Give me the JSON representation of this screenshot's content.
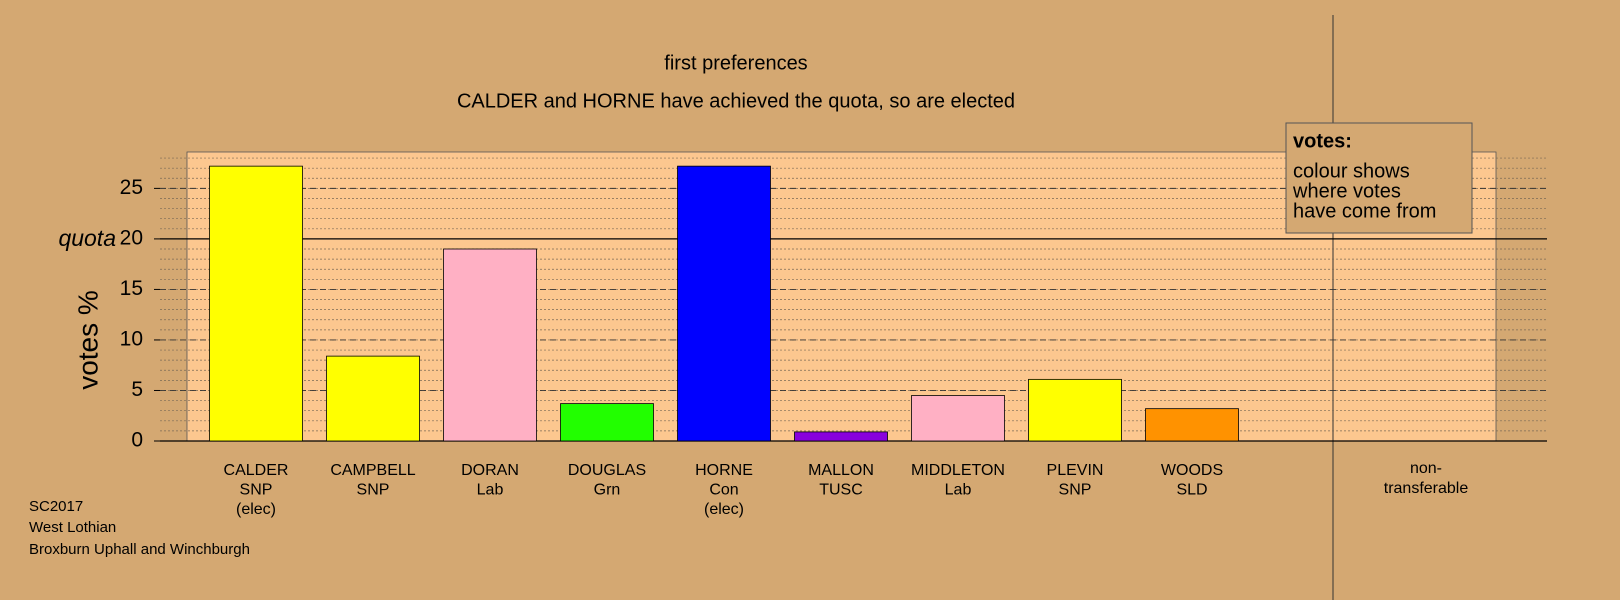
{
  "chart_data": {
    "type": "bar",
    "title": "first preferences",
    "subtitle": "CALDER and HORNE have achieved the quota, so are elected",
    "ylabel": "votes %",
    "categories": [
      [
        "CALDER",
        "SNP",
        "(elec)"
      ],
      [
        "CAMPBELL",
        "SNP"
      ],
      [
        "DORAN",
        "Lab"
      ],
      [
        "DOUGLAS",
        "Grn"
      ],
      [
        "HORNE",
        "Con",
        "(elec)"
      ],
      [
        "MALLON",
        "TUSC"
      ],
      [
        "MIDDLETON",
        "Lab"
      ],
      [
        "PLEVIN",
        "SNP"
      ],
      [
        "WOODS",
        "SLD"
      ]
    ],
    "values": [
      27.2,
      8.4,
      19.0,
      3.7,
      27.2,
      0.9,
      4.5,
      6.1,
      3.2
    ],
    "colors": [
      "#ffff00",
      "#ffff00",
      "#ffb0c4",
      "#22ff00",
      "#0000ff",
      "#8800dd",
      "#ffb0c4",
      "#ffff00",
      "#ff9200"
    ],
    "extra_column": [
      "non-",
      "transferable"
    ],
    "ylim": [
      0,
      28.6
    ],
    "yticks": [
      0,
      5,
      10,
      15,
      20,
      25
    ],
    "quota": {
      "value": 20,
      "label": "quota"
    },
    "grid": true,
    "legend": {
      "title": "votes:",
      "lines": [
        "colour shows",
        "where votes",
        "have come from"
      ]
    },
    "footer": [
      "SC2017",
      "West Lothian",
      "Broxburn Uphall and Winchburgh"
    ]
  }
}
